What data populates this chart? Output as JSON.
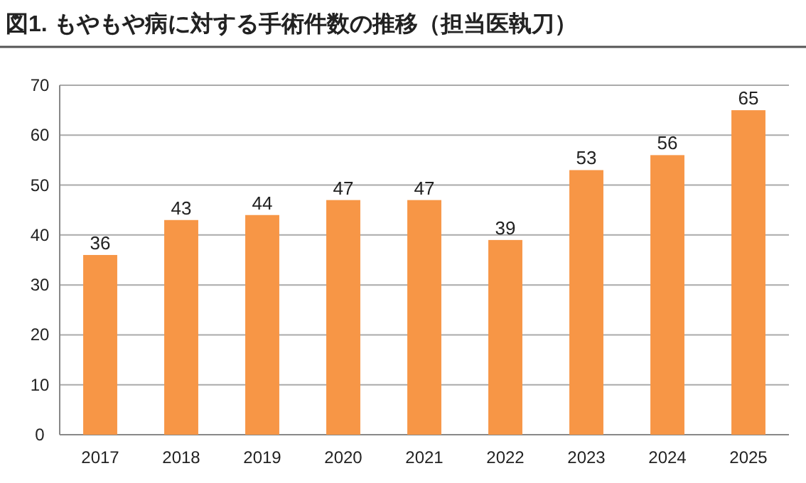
{
  "chart_data": {
    "type": "bar",
    "title": "図1. もやもや病に対する手術件数の推移（担当医執刀）",
    "categories": [
      "2017",
      "2018",
      "2019",
      "2020",
      "2021",
      "2022",
      "2023",
      "2024",
      "2025"
    ],
    "values": [
      36,
      43,
      44,
      47,
      47,
      39,
      53,
      56,
      65
    ],
    "color": "#f79646",
    "ylim": [
      0,
      70
    ],
    "yticks": [
      0,
      10,
      20,
      30,
      40,
      50,
      60,
      70
    ],
    "grid": "y",
    "data_labels": true
  }
}
